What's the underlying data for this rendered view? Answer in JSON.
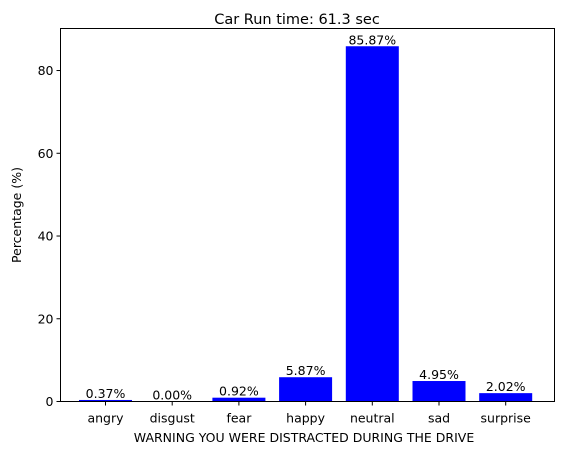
{
  "chart_data": {
    "type": "bar",
    "title": "Car Run time: 61.3 sec",
    "ylabel": "Percentage (%)",
    "xlabel": "WARNING YOU WERE DISTRACTED DURING THE DRIVE",
    "xlabel_color": "#ff0000",
    "bar_color": "#0000ff",
    "categories": [
      "angry",
      "disgust",
      "fear",
      "happy",
      "neutral",
      "sad",
      "surprise"
    ],
    "values": [
      0.37,
      0.0,
      0.92,
      5.87,
      85.87,
      4.95,
      2.02
    ],
    "data_labels": [
      "0.37%",
      "0.00%",
      "0.92%",
      "5.87%",
      "85.87%",
      "4.95%",
      "2.02%"
    ],
    "y_ticks": [
      0,
      20,
      40,
      60,
      80
    ],
    "ylim": [
      0,
      90.16
    ],
    "grid": false,
    "legend": "none"
  }
}
